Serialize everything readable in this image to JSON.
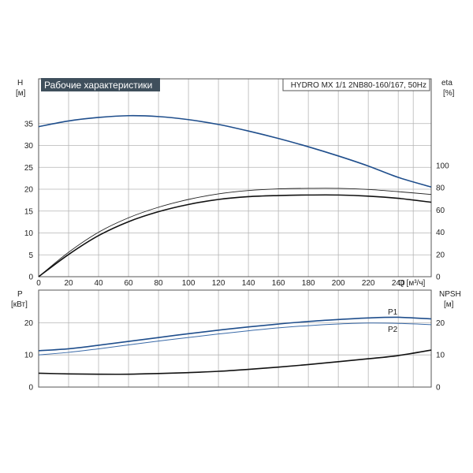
{
  "chart_data": [
    {
      "type": "line",
      "title": "Рабочие характеристики",
      "subtitle": "HYDRO MX 1/1 2NB80-160/167, 50Hz",
      "ylabel": "H",
      "yunit": "[м]",
      "y2label": "eta",
      "y2unit": "[%]",
      "xlabel": "Q [м³/ч]",
      "xlim": [
        0,
        262
      ],
      "ylim": [
        0,
        40
      ],
      "y2lim": [
        0,
        200
      ],
      "xticks": [
        0,
        20,
        40,
        60,
        80,
        100,
        120,
        140,
        160,
        180,
        200,
        220,
        240
      ],
      "yticks": [
        0,
        5,
        10,
        15,
        20,
        25,
        30,
        35
      ],
      "y2ticks": [
        0,
        20,
        40,
        60,
        80,
        100
      ],
      "grid": true,
      "colors": {
        "head": "#1f4e8c",
        "eta": "#111111",
        "eta_thin": "#222222"
      },
      "series": [
        {
          "key": "head",
          "axis": "left",
          "x": [
            0,
            20,
            40,
            60,
            80,
            100,
            120,
            140,
            160,
            180,
            200,
            220,
            240,
            262
          ],
          "values": [
            34.3,
            35.6,
            36.4,
            36.8,
            36.6,
            35.9,
            34.8,
            33.3,
            31.6,
            29.7,
            27.6,
            25.3,
            22.7,
            20.5
          ]
        },
        {
          "key": "eta_thin",
          "axis": "right",
          "x": [
            0,
            20,
            40,
            60,
            80,
            100,
            120,
            140,
            160,
            180,
            200,
            220,
            240,
            262
          ],
          "values": [
            0,
            22,
            40,
            53,
            62.5,
            69.5,
            74.5,
            77.5,
            79,
            79.5,
            79.5,
            78.5,
            76.5,
            74
          ]
        },
        {
          "key": "eta",
          "axis": "right",
          "x": [
            0,
            20,
            40,
            60,
            80,
            100,
            120,
            140,
            160,
            180,
            200,
            220,
            240,
            262
          ],
          "values": [
            0,
            20,
            37,
            49.5,
            58.5,
            65,
            69.5,
            72,
            73,
            73.5,
            73.5,
            72.5,
            70.5,
            67
          ]
        }
      ]
    },
    {
      "type": "line",
      "ylabel": "P",
      "yunit": "[кВт]",
      "y2label": "NPSH",
      "y2unit": "[м]",
      "xlim": [
        0,
        262
      ],
      "ylim": [
        0,
        28
      ],
      "y2lim": [
        0,
        28
      ],
      "yticks": [
        0,
        10,
        20
      ],
      "y2ticks": [
        0,
        10,
        20
      ],
      "grid": true,
      "colors": {
        "P1": "#1f4e8c",
        "P2": "#3a6aa8",
        "NPSH": "#111111"
      },
      "series": [
        {
          "name": "P1",
          "axis": "left",
          "x": [
            0,
            20,
            40,
            60,
            80,
            100,
            120,
            140,
            160,
            180,
            200,
            220,
            240,
            262
          ],
          "values": [
            11.3,
            11.9,
            13.0,
            14.2,
            15.4,
            16.6,
            17.7,
            18.7,
            19.6,
            20.4,
            21.0,
            21.5,
            21.7,
            21.2
          ]
        },
        {
          "name": "P2",
          "axis": "left",
          "x": [
            0,
            20,
            40,
            60,
            80,
            100,
            120,
            140,
            160,
            180,
            200,
            220,
            240,
            262
          ],
          "values": [
            10.0,
            10.8,
            11.9,
            13.1,
            14.3,
            15.4,
            16.5,
            17.5,
            18.4,
            19.1,
            19.6,
            19.9,
            19.8,
            19.4
          ]
        },
        {
          "key": "NPSH",
          "axis": "right",
          "x": [
            0,
            20,
            40,
            60,
            80,
            100,
            120,
            140,
            160,
            180,
            200,
            220,
            240,
            262
          ],
          "values": [
            4.3,
            4.1,
            4.0,
            4.0,
            4.2,
            4.5,
            4.9,
            5.5,
            6.2,
            7.0,
            7.9,
            8.8,
            9.8,
            11.5
          ]
        }
      ]
    }
  ]
}
